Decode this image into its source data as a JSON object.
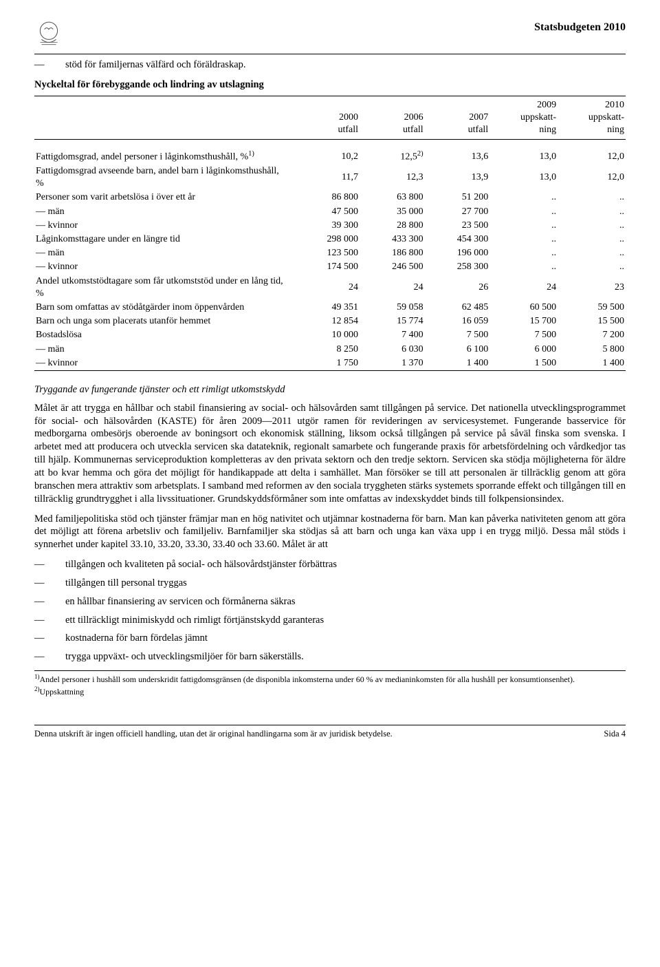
{
  "header": {
    "title": "Statsbudgeten 2010"
  },
  "intro_bullet": "stöd för familjernas välfärd och föräldraskap.",
  "table": {
    "title": "Nyckeltal för förebyggande och lindring av utslagning",
    "columns": [
      "",
      "2000\nutfall",
      "2006\nutfall",
      "2007\nutfall",
      "2009\nuppskatt-\nning",
      "2010\nuppskatt-\nning"
    ],
    "rows": [
      [
        "Fattigdomsgrad, andel personer i låginkomsthushåll, %¹⁾",
        "10,2",
        "12,5²⁾",
        "13,6",
        "13,0",
        "12,0"
      ],
      [
        "Fattigdomsgrad avseende barn, andel barn i låginkomsthushåll, %",
        "11,7",
        "12,3",
        "13,9",
        "13,0",
        "12,0"
      ],
      [
        "Personer som varit arbetslösa i över ett år",
        "86 800",
        "63 800",
        "51 200",
        "..",
        ".."
      ],
      [
        "— män",
        "47 500",
        "35 000",
        "27 700",
        "..",
        ".."
      ],
      [
        "— kvinnor",
        "39 300",
        "28 800",
        "23 500",
        "..",
        ".."
      ],
      [
        "Låginkomsttagare under en längre tid",
        "298 000",
        "433 300",
        "454 300",
        "..",
        ".."
      ],
      [
        "— män",
        "123 500",
        "186 800",
        "196 000",
        "..",
        ".."
      ],
      [
        "— kvinnor",
        "174 500",
        "246 500",
        "258 300",
        "..",
        ".."
      ],
      [
        "Andel utkomststödtagare som får utkomststöd under en lång tid, %",
        "24",
        "24",
        "26",
        "24",
        "23"
      ],
      [
        "Barn som omfattas av stödåtgärder inom öppenvården",
        "49 351",
        "59 058",
        "62 485",
        "60 500",
        "59 500"
      ],
      [
        "Barn och unga som placerats utanför hemmet",
        "12 854",
        "15 774",
        "16 059",
        "15 700",
        "15 500"
      ],
      [
        "Bostadslösa",
        "10 000",
        "7 400",
        "7 500",
        "7 500",
        "7 200"
      ],
      [
        "— män",
        "8 250",
        "6 030",
        "6 100",
        "6 000",
        "5 800"
      ],
      [
        "— kvinnor",
        "1 750",
        "1 370",
        "1 400",
        "1 500",
        "1 400"
      ]
    ]
  },
  "section_heading": "Tryggande av fungerande tjänster och ett rimligt utkomstskydd",
  "para1": "Målet är att trygga en hållbar och stabil finansiering av social- och hälsovården samt tillgången på service. Det nationella utvecklingsprogrammet för social- och hälsovården (KASTE) för åren 2009—2011 utgör ramen för revideringen av servicesystemet. Fungerande basservice för medborgarna ombesörjs oberoende av boningsort och ekonomisk ställning, liksom också tillgången på service på såväl finska som svenska. I arbetet med att producera och utveckla servicen ska datateknik, regionalt samarbete och fungerande praxis för arbetsfördelning och vårdkedjor tas till hjälp. Kommunernas serviceproduktion kompletteras av den privata sektorn och den tredje sektorn. Servicen ska stödja möjligheterna för äldre att bo kvar hemma och göra det möjligt för handikappade att delta i samhället. Man försöker se till att personalen är tillräcklig genom att göra branschen mera attraktiv som arbetsplats. I samband med reformen av den sociala tryggheten stärks systemets sporrande effekt och tillgången till en tillräcklig grundtrygghet i alla livssituationer. Grundskyddsförmåner som inte omfattas av indexskyddet binds till folkpensionsindex.",
  "para2": "Med familjepolitiska stöd och tjänster främjar man en hög nativitet och utjämnar kostnaderna för barn. Man kan påverka nativiteten genom att göra det möjligt att förena arbetsliv och familjeliv. Barnfamiljer ska stödjas så att barn och unga kan växa upp i en trygg miljö. Dessa mål stöds i synnerhet under kapitel 33.10, 33.20, 33.30, 33.40 och 33.60. Målet är att",
  "bullets": [
    "tillgången och kvaliteten på social- och hälsovårdstjänster förbättras",
    "tillgången till personal tryggas",
    "en hållbar finansiering av servicen och förmånerna säkras",
    "ett tillräckligt minimiskydd och rimligt förtjänstskydd garanteras",
    "kostnaderna för barn fördelas jämnt",
    "trygga uppväxt- och utvecklingsmiljöer för barn säkerställs."
  ],
  "footnote1": "¹⁾Andel personer i hushåll som underskridit fattigdomsgränsen (de disponibla inkomsterna under 60 % av medianinkomsten för alla hushåll per konsumtionsenhet).",
  "footnote2": "²⁾Uppskattning",
  "footer": {
    "left": "Denna utskrift är ingen officiell handling, utan det är original handlingarna som är av juridisk betydelse.",
    "right": "Sida 4"
  }
}
